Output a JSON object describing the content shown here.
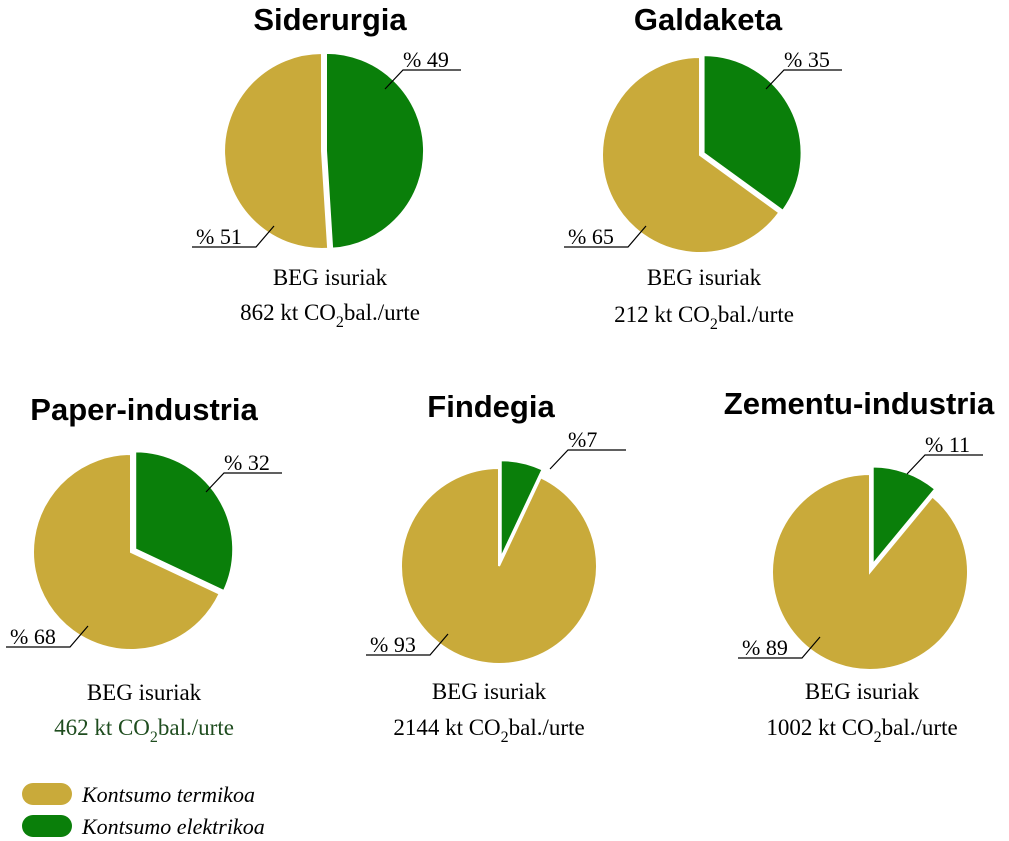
{
  "colors": {
    "thermal": "#C9AA3A",
    "electric": "#0A7F0A",
    "caption_green": "#1F4D1F"
  },
  "chart_data": [
    {
      "type": "pie",
      "title": "Siderurgia",
      "slices": [
        {
          "label": "% 51",
          "value": 51,
          "category": "thermal"
        },
        {
          "label": "% 49",
          "value": 49,
          "category": "electric"
        }
      ],
      "caption_line1": "BEG isuriak",
      "caption_value": "862 kt CO",
      "caption_sub": "2",
      "caption_unit": "bal./urte"
    },
    {
      "type": "pie",
      "title": "Galdaketa",
      "slices": [
        {
          "label": "% 65",
          "value": 65,
          "category": "thermal"
        },
        {
          "label": "% 35",
          "value": 35,
          "category": "electric"
        }
      ],
      "caption_line1": "BEG isuriak",
      "caption_value": "212 kt CO",
      "caption_sub": "2",
      "caption_unit": "bal./urte"
    },
    {
      "type": "pie",
      "title": "Paper-industria",
      "slices": [
        {
          "label": "% 68",
          "value": 68,
          "category": "thermal"
        },
        {
          "label": "% 32",
          "value": 32,
          "category": "electric"
        }
      ],
      "caption_line1": "BEG isuriak",
      "caption_value": "462 kt CO",
      "caption_sub": "2",
      "caption_unit": "bal./urte",
      "caption_color": "#1F4D1F"
    },
    {
      "type": "pie",
      "title": "Findegia",
      "slices": [
        {
          "label": "% 93",
          "value": 93,
          "category": "thermal"
        },
        {
          "label": "%7",
          "value": 7,
          "category": "electric"
        }
      ],
      "caption_line1": "BEG isuriak",
      "caption_value": "2144 kt CO",
      "caption_sub": "2",
      "caption_unit": "bal./urte"
    },
    {
      "type": "pie",
      "title": "Zementu-industria",
      "slices": [
        {
          "label": "% 89",
          "value": 89,
          "category": "thermal"
        },
        {
          "label": "% 11",
          "value": 11,
          "category": "electric"
        }
      ],
      "caption_line1": "BEG isuriak",
      "caption_value": "1002 kt CO",
      "caption_sub": "2",
      "caption_unit": "bal./urte"
    }
  ],
  "legend": [
    {
      "label": "Kontsumo termikoa",
      "category": "thermal"
    },
    {
      "label": "Kontsumo elektrikoa",
      "category": "electric"
    }
  ]
}
